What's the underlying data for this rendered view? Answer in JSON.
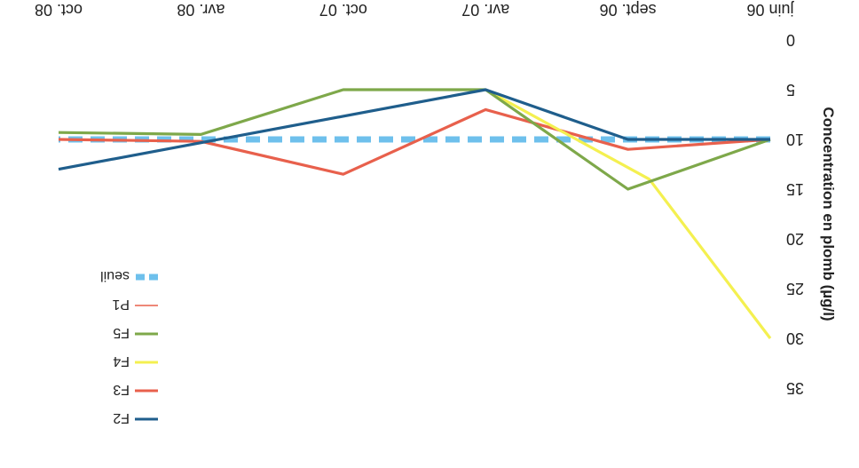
{
  "chart_data": {
    "type": "line",
    "orientation": "rotated-180",
    "categories": [
      "juin 06",
      "sept. 06",
      "avr. 07",
      "oct. 07",
      "avr. 08",
      "oct. 08"
    ],
    "ylabel": "Concentration en plomb (µg/l)",
    "xlabel": "",
    "ylim": [
      0,
      35
    ],
    "yticks": [
      0,
      5,
      10,
      15,
      20,
      25,
      30,
      35
    ],
    "y_reversed": true,
    "grid": false,
    "legend_position": "bottom-left",
    "series": [
      {
        "name": "F2",
        "color": "#1f5e8c",
        "style": "solid",
        "values": [
          10,
          10,
          5,
          null,
          null,
          13
        ],
        "x": [
          0,
          1,
          2,
          null,
          null,
          5
        ]
      },
      {
        "name": "F3",
        "color": "#e8604c",
        "style": "solid",
        "values": [
          10,
          11,
          7,
          13.5,
          10.2,
          10
        ],
        "x": [
          0,
          1,
          2,
          3,
          4,
          5
        ]
      },
      {
        "name": "F4",
        "color": "#f4f050",
        "style": "solid",
        "values": [
          30,
          14,
          5
        ],
        "x": [
          0,
          0.85,
          2
        ]
      },
      {
        "name": "F5",
        "color": "#7ea84a",
        "style": "solid",
        "values": [
          10,
          15,
          5,
          5,
          9.5,
          9.3
        ],
        "x": [
          0,
          1,
          2,
          3,
          4,
          5
        ]
      },
      {
        "name": "P1",
        "color": "#e8604c",
        "style": "thin",
        "values": [],
        "x": []
      },
      {
        "name": "seuil",
        "color": "#6ec0ec",
        "style": "dashed",
        "values": [
          10,
          10,
          10,
          10,
          10,
          10
        ],
        "x": [
          0,
          1,
          2,
          3,
          4,
          5
        ]
      }
    ]
  }
}
